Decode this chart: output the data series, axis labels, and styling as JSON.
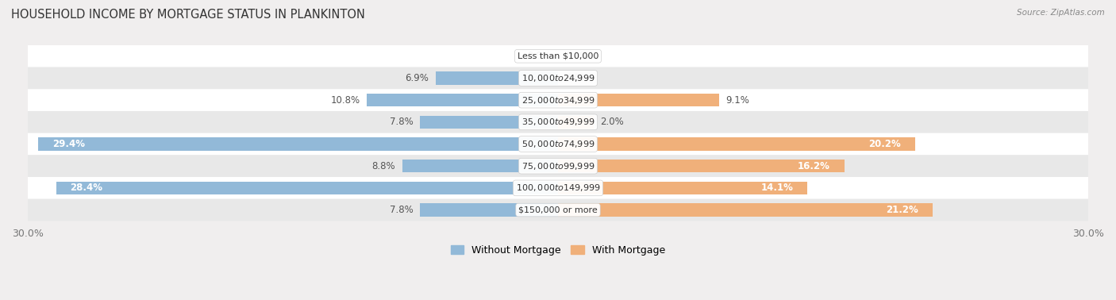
{
  "title": "HOUSEHOLD INCOME BY MORTGAGE STATUS IN PLANKINTON",
  "source": "Source: ZipAtlas.com",
  "categories": [
    "Less than $10,000",
    "$10,000 to $24,999",
    "$25,000 to $34,999",
    "$35,000 to $49,999",
    "$50,000 to $74,999",
    "$75,000 to $99,999",
    "$100,000 to $149,999",
    "$150,000 or more"
  ],
  "without_mortgage": [
    0.0,
    6.9,
    10.8,
    7.8,
    29.4,
    8.8,
    28.4,
    7.8
  ],
  "with_mortgage": [
    0.0,
    0.0,
    9.1,
    2.0,
    20.2,
    16.2,
    14.1,
    21.2
  ],
  "color_without": "#92b9d8",
  "color_with": "#f0b07a",
  "xlim": 30.0,
  "bg_color": "#f0eeee",
  "row_color_even": "#ffffff",
  "row_color_odd": "#e8e8e8",
  "legend_label_without": "Without Mortgage",
  "legend_label_with": "With Mortgage"
}
